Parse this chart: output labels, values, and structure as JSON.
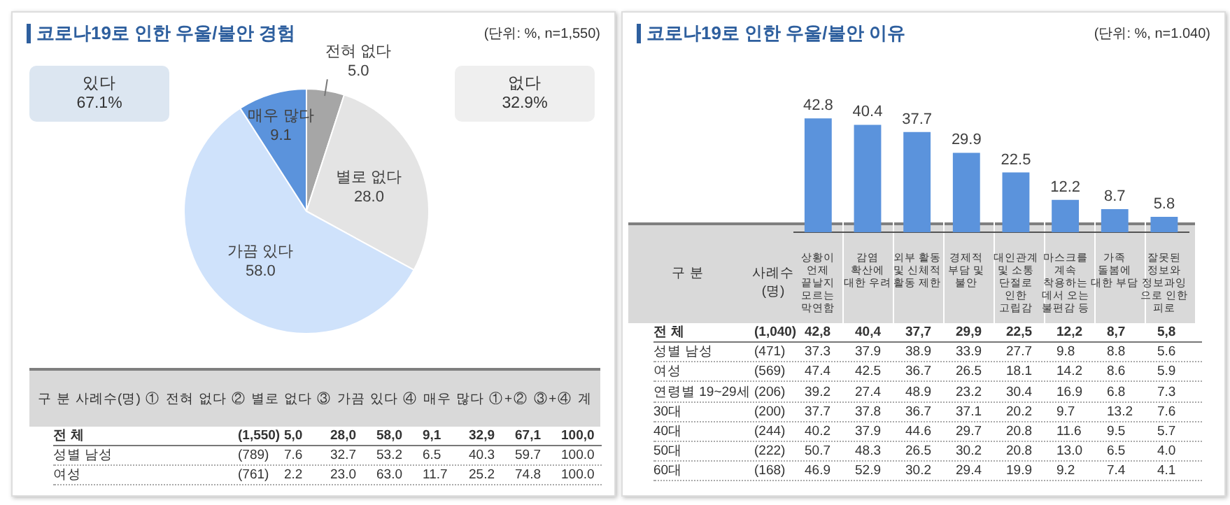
{
  "chart_data": [
    {
      "type": "pie",
      "title": "코로나19로 인한 우울/불안 경험",
      "categories": [
        "전혀 없다",
        "별로 없다",
        "가끔 있다",
        "매우 많다"
      ],
      "values": [
        5.0,
        28.0,
        58.0,
        9.1
      ],
      "value_labels": [
        "5.0",
        "28.0",
        "58.0",
        "9.1"
      ],
      "colors": [
        "#a6a6a6",
        "#e4e4e4",
        "#cfe2fb",
        "#5b93dc"
      ],
      "annotations": [
        "(단위: %, n=1,550)",
        "있다 67.1%",
        "없다 32.9%",
        "구 분 사례수(명) ① 전혀 없다 ② 별로 없다 ③ 가끔 있다 ④ 매우 많다 ①+② ③+④ 계",
        "전 체 (1,550) 5,0 28,0 58,0 9,1 32,9 67,1 100,0",
        "성별 남성 (789) 7.6 32.7 53.2 6.5 40.3 59.7 100.0",
        "여성 (761) 2.2 23.0 63.0 11.7 25.2 74.8 100.0"
      ]
    },
    {
      "type": "bar",
      "title": "코로나19로 인한 우울/불안 이유",
      "categories": [
        "상황이 언제 끝날지 모르는 막연함",
        "감염 확산에 대한 우려",
        "외부 활동 및 신체적 활동 제한",
        "경제적 부담 및 불안",
        "대인관계 및 소통 단절로 인한 고립감",
        "마스크를 계속 착용하는 데서 오는 불편감 등",
        "가족 돌봄에 대한 부담",
        "잘못된 정보와 정보과잉으로 인한 피로"
      ],
      "values": [
        42.8,
        40.4,
        37.7,
        29.9,
        22.5,
        12.2,
        8.7,
        5.8
      ],
      "color": "#5b93dc",
      "data_labels": true,
      "annotations": [
        "(단위: %, n=1.040)",
        "구 분",
        "사례수(명)",
        "전 체 (1,040) 42,8 40,4 37,7 29,9 22,5 12,2 8,7 5,8",
        "성별 남성 (471) 37.3 37.9 38.9 33.9 27.7 9.8 8.8 5.6",
        "여성 (569) 47.4 42.5 36.7 26.5 18.1 14.2 8.6 5.9",
        "연령별 19~29세 (206) 39.2 27.4 48.9 23.2 30.4 16.9 6.8 7.3",
        "30대 (200) 37.7 37.8 36.7 37.1 20.2 9.7 13.2 7.6",
        "40대 (244) 40.2 37.9 44.6 29.7 20.8 11.6 9.5 5.7",
        "50대 (222) 50.7 48.3 26.5 30.2 20.8 13.0 6.5 4.0",
        "60대 (168) 46.9 52.9 30.2 29.4 19.9 9.2 7.4 4.1"
      ]
    }
  ]
}
